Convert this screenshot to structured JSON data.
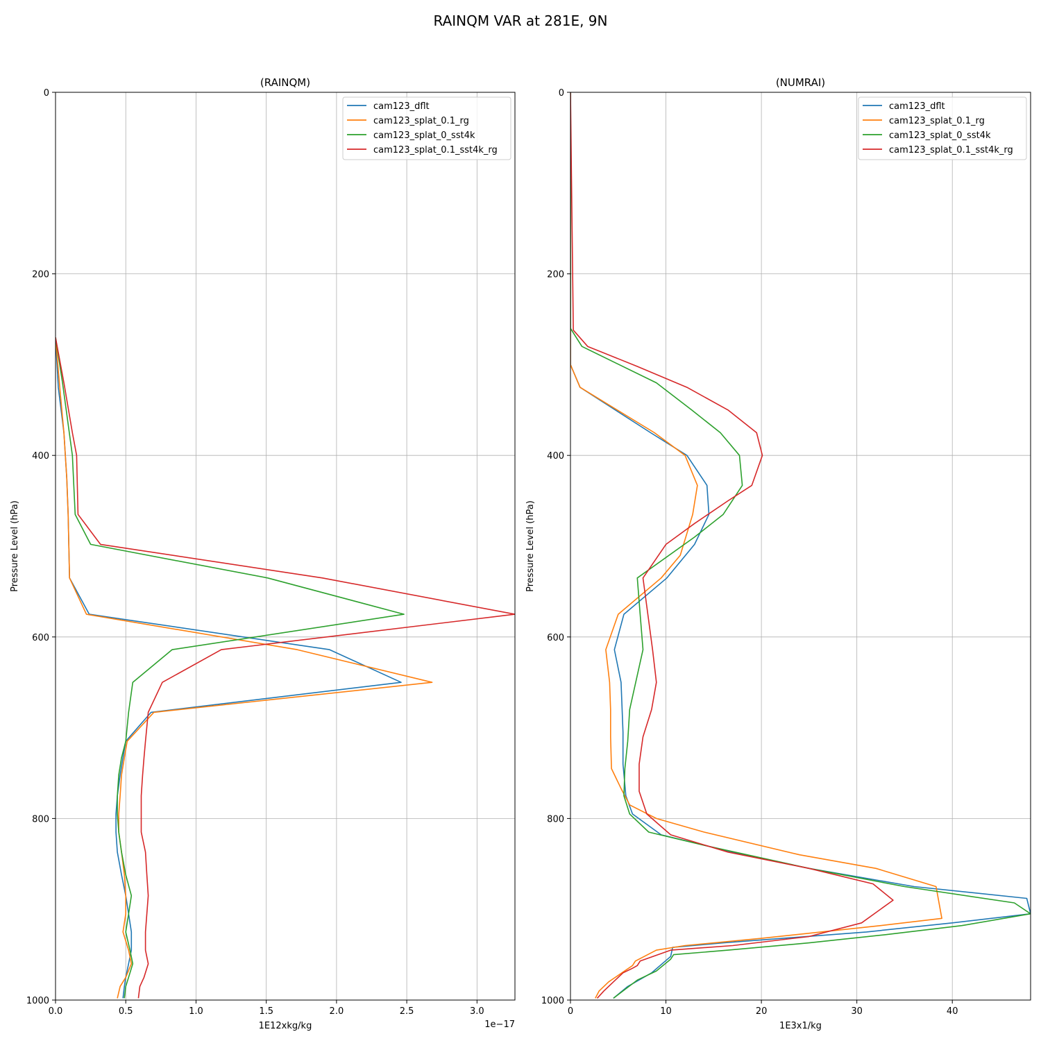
{
  "chart_data": {
    "type": "line",
    "title": "RAINQM VAR at 281E, 9N",
    "colors": [
      "#1f77b4",
      "#ff7f0e",
      "#2ca02c",
      "#d62728"
    ],
    "panels": [
      {
        "title": "(RAINQM)",
        "xlabel": "1E12xkg/kg",
        "ylabel": "Pressure Level (hPa)",
        "x_offset_label": "1e−17",
        "xlim": [
          0,
          3.27
        ],
        "ylim": [
          1000,
          0
        ],
        "y_inverted": true,
        "xticks": [
          0,
          0.5,
          1.0,
          1.5,
          2.0,
          2.5,
          3.0
        ],
        "xtick_labels": [
          "0.0",
          "0.5",
          "1.0",
          "1.5",
          "2.0",
          "2.5",
          "3.0"
        ],
        "yticks": [
          0,
          200,
          400,
          600,
          800,
          1000
        ],
        "ytick_labels": [
          "0",
          "200",
          "400",
          "600",
          "800",
          "1000"
        ],
        "grid": true,
        "legend": "top-right",
        "series": [
          {
            "name": "cam123_dflt",
            "x": [
              0.48,
              0.49,
              0.5,
              0.52,
              0.54,
              0.54,
              0.52,
              0.5,
              0.47,
              0.44,
              0.43,
              0.43,
              0.44,
              0.46,
              0.48,
              0.5,
              0.68,
              2.46,
              1.95,
              0.24,
              0.1,
              0.09,
              0.08,
              0.06,
              0.02,
              0.0
            ],
            "y": [
              998,
              985,
              975,
              960,
              945,
              925,
              905,
              885,
              862,
              837,
              815,
              795,
              775,
              752,
              733,
              715,
              683,
              650,
              614,
              575,
              535,
              465,
              425,
              375,
              325,
              270
            ]
          },
          {
            "name": "cam123_splat_0.1_rg",
            "x": [
              0.44,
              0.46,
              0.5,
              0.54,
              0.52,
              0.48,
              0.5,
              0.5,
              0.49,
              0.47,
              0.45,
              0.45,
              0.46,
              0.47,
              0.49,
              0.51,
              0.7,
              2.68,
              1.72,
              0.22,
              0.1,
              0.09,
              0.08,
              0.06,
              0.03,
              0.0
            ],
            "y": [
              998,
              985,
              975,
              960,
              945,
              925,
              905,
              885,
              862,
              837,
              815,
              795,
              775,
              752,
              733,
              715,
              683,
              650,
              614,
              575,
              535,
              465,
              425,
              375,
              325,
              270
            ]
          },
          {
            "name": "cam123_splat_0_sst4k",
            "x": [
              0.49,
              0.5,
              0.52,
              0.55,
              0.53,
              0.5,
              0.52,
              0.54,
              0.5,
              0.47,
              0.45,
              0.44,
              0.44,
              0.45,
              0.47,
              0.5,
              0.52,
              0.55,
              0.83,
              2.48,
              1.51,
              0.25,
              0.14,
              0.12,
              0.05,
              0.0
            ],
            "y": [
              998,
              985,
              975,
              960,
              945,
              925,
              905,
              885,
              862,
              837,
              815,
              795,
              775,
              752,
              733,
              715,
              683,
              650,
              614,
              575,
              535,
              498,
              465,
              400,
              320,
              270
            ]
          },
          {
            "name": "cam123_splat_0.1_sst4k_rg",
            "x": [
              0.59,
              0.6,
              0.63,
              0.66,
              0.64,
              0.64,
              0.65,
              0.66,
              0.65,
              0.64,
              0.61,
              0.61,
              0.61,
              0.62,
              0.63,
              0.64,
              0.66,
              0.76,
              1.18,
              3.27,
              1.9,
              0.32,
              0.16,
              0.15,
              0.12,
              0.06,
              0.0
            ],
            "y": [
              998,
              985,
              975,
              960,
              945,
              925,
              905,
              885,
              862,
              837,
              815,
              795,
              775,
              752,
              733,
              715,
              683,
              650,
              614,
              575,
              535,
              498,
              465,
              400,
              375,
              320,
              270
            ]
          }
        ]
      },
      {
        "title": "(NUMRAI)",
        "xlabel": "1E3x1/kg",
        "ylabel": "Pressure Level (hPa)",
        "x_offset_label": "",
        "xlim": [
          0,
          48.2
        ],
        "ylim": [
          1000,
          0
        ],
        "y_inverted": true,
        "xticks": [
          0,
          10,
          20,
          30,
          40
        ],
        "xtick_labels": [
          "0",
          "10",
          "20",
          "30",
          "40"
        ],
        "yticks": [
          0,
          200,
          400,
          600,
          800,
          1000
        ],
        "ytick_labels": [
          "0",
          "200",
          "400",
          "600",
          "800",
          "1000"
        ],
        "grid": true,
        "legend": "top-right",
        "series": [
          {
            "name": "cam123_dflt",
            "x": [
              4.5,
              6.0,
              8.5,
              10.5,
              10.7,
              16.0,
              31.0,
              40.0,
              48.2,
              47.8,
              36.0,
              25.0,
              17.0,
              9.5,
              6.5,
              5.8,
              5.5,
              5.5,
              5.3,
              4.6,
              5.6,
              10.1,
              13.0,
              14.5,
              14.3,
              12.2,
              8.4,
              1.0,
              0.0,
              0.0
            ],
            "y": [
              998,
              985,
              970,
              952,
              942,
              937,
              925,
              915,
              905,
              888,
              875,
              855,
              837,
              818,
              795,
              775,
              740,
              705,
              650,
              614,
              575,
              535,
              498,
              465,
              433,
              400,
              375,
              325,
              300,
              0
            ]
          },
          {
            "name": "cam123_splat_0.1_rg",
            "x": [
              2.6,
              3.0,
              4.0,
              6.5,
              6.8,
              9.0,
              12.0,
              20.0,
              32.5,
              38.9,
              38.3,
              32.0,
              24.0,
              14.0,
              9.0,
              6.2,
              5.3,
              4.3,
              4.2,
              4.2,
              4.1,
              3.7,
              5.0,
              9.5,
              11.5,
              12.8,
              13.3,
              12.0,
              8.8,
              1.0,
              0.0,
              0.0
            ],
            "y": [
              998,
              990,
              980,
              962,
              957,
              945,
              940,
              932,
              918,
              910,
              875,
              855,
              840,
              815,
              800,
              785,
              767,
              745,
              710,
              680,
              650,
              614,
              575,
              535,
              510,
              465,
              433,
              400,
              375,
              325,
              300,
              0
            ]
          },
          {
            "name": "cam123_splat_0_sst4k",
            "x": [
              4.5,
              5.5,
              7.0,
              9.0,
              10.5,
              10.8,
              16.5,
              25.0,
              33.0,
              41.0,
              48.2,
              46.5,
              35.0,
              25.0,
              14.2,
              8.2,
              6.2,
              5.6,
              5.7,
              6.0,
              6.2,
              7.6,
              7.3,
              7.0,
              13.0,
              16.0,
              18.0,
              17.7,
              15.7,
              12.7,
              9.0,
              1.2,
              0.0,
              0.0
            ],
            "y": [
              998,
              990,
              978,
              968,
              955,
              950,
              945,
              937,
              928,
              918,
              905,
              893,
              875,
              855,
              830,
              815,
              795,
              775,
              745,
              715,
              680,
              614,
              575,
              535,
              490,
              465,
              433,
              400,
              375,
              350,
              320,
              280,
              260,
              0
            ]
          },
          {
            "name": "cam123_splat_0.1_sst4k_rg",
            "x": [
              2.8,
              3.5,
              4.5,
              5.5,
              6.5,
              7.0,
              7.3,
              10.5,
              17.0,
              25.0,
              30.5,
              33.8,
              31.7,
              25.0,
              16.5,
              10.5,
              8.0,
              7.2,
              7.2,
              7.6,
              8.5,
              9.0,
              8.6,
              7.6,
              10.0,
              13.0,
              16.5,
              19.0,
              20.1,
              19.5,
              16.5,
              12.2,
              7.0,
              1.8,
              0.3,
              0.0
            ],
            "y": [
              998,
              990,
              980,
              970,
              965,
              962,
              957,
              945,
              940,
              930,
              915,
              890,
              872,
              855,
              837,
              818,
              795,
              770,
              740,
              710,
              680,
              650,
              614,
              535,
              498,
              475,
              450,
              433,
              400,
              375,
              350,
              325,
              302,
              280,
              262,
              0
            ]
          }
        ]
      }
    ]
  }
}
